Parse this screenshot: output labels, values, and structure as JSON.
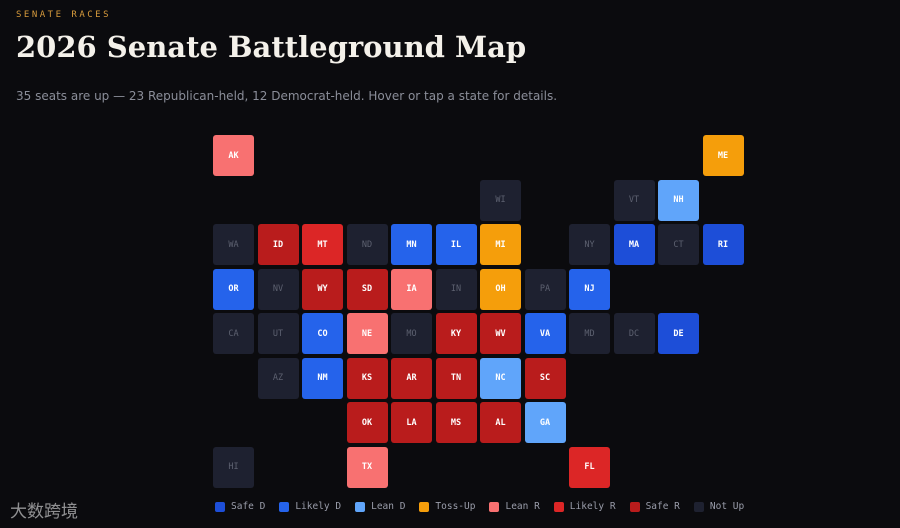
{
  "header": {
    "eyebrow": "SENATE RACES",
    "title": "2026 Senate Battleground Map",
    "subtitle": "35 seats are up — 23 Republican-held, 12 Democrat-held. Hover or tap a state for details."
  },
  "legend": [
    {
      "name": "Safe D",
      "color": "#1d4ed8"
    },
    {
      "name": "Likely D",
      "color": "#2563eb"
    },
    {
      "name": "Lean D",
      "color": "#60a5fa"
    },
    {
      "name": "Toss-Up",
      "color": "#f59e0b"
    },
    {
      "name": "Lean R",
      "color": "#f87171"
    },
    {
      "name": "Likely R",
      "color": "#dc2626"
    },
    {
      "name": "Safe R",
      "color": "#b91c1c"
    },
    {
      "name": "Not Up",
      "color": "#1e2130"
    }
  ],
  "tiles": [
    {
      "label": "AK",
      "rating": "Lean R"
    },
    {
      "label": "ME",
      "rating": "Toss-Up"
    },
    {
      "label": "WI",
      "rating": "Not Up"
    },
    {
      "label": "VT",
      "rating": "Not Up"
    },
    {
      "label": "NH",
      "rating": "Lean D"
    },
    {
      "label": "WA",
      "rating": "Not Up"
    },
    {
      "label": "ID",
      "rating": "Safe R"
    },
    {
      "label": "MT",
      "rating": "Likely R"
    },
    {
      "label": "ND",
      "rating": "Not Up"
    },
    {
      "label": "MN",
      "rating": "Likely D"
    },
    {
      "label": "IL",
      "rating": "Likely D"
    },
    {
      "label": "MI",
      "rating": "Toss-Up"
    },
    {
      "label": "NY",
      "rating": "Not Up"
    },
    {
      "label": "MA",
      "rating": "Safe D"
    },
    {
      "label": "CT",
      "rating": "Not Up"
    },
    {
      "label": "RI",
      "rating": "Safe D"
    },
    {
      "label": "OR",
      "rating": "Likely D"
    },
    {
      "label": "NV",
      "rating": "Not Up"
    },
    {
      "label": "WY",
      "rating": "Safe R"
    },
    {
      "label": "SD",
      "rating": "Safe R"
    },
    {
      "label": "IA",
      "rating": "Lean R"
    },
    {
      "label": "IN",
      "rating": "Not Up"
    },
    {
      "label": "OH",
      "rating": "Toss-Up"
    },
    {
      "label": "PA",
      "rating": "Not Up"
    },
    {
      "label": "NJ",
      "rating": "Likely D"
    },
    {
      "label": "CA",
      "rating": "Not Up"
    },
    {
      "label": "UT",
      "rating": "Not Up"
    },
    {
      "label": "CO",
      "rating": "Likely D"
    },
    {
      "label": "NE",
      "rating": "Lean R"
    },
    {
      "label": "MO",
      "rating": "Not Up"
    },
    {
      "label": "KY",
      "rating": "Safe R"
    },
    {
      "label": "WV",
      "rating": "Safe R"
    },
    {
      "label": "VA",
      "rating": "Likely D"
    },
    {
      "label": "MD",
      "rating": "Not Up"
    },
    {
      "label": "DC",
      "rating": "Not Up"
    },
    {
      "label": "DE",
      "rating": "Safe D"
    },
    {
      "label": "AZ",
      "rating": "Not Up"
    },
    {
      "label": "NM",
      "rating": "Likely D"
    },
    {
      "label": "KS",
      "rating": "Safe R"
    },
    {
      "label": "AR",
      "rating": "Safe R"
    },
    {
      "label": "TN",
      "rating": "Safe R"
    },
    {
      "label": "NC",
      "rating": "Lean D"
    },
    {
      "label": "SC",
      "rating": "Safe R"
    },
    {
      "label": "OK",
      "rating": "Safe R"
    },
    {
      "label": "LA",
      "rating": "Safe R"
    },
    {
      "label": "MS",
      "rating": "Safe R"
    },
    {
      "label": "AL",
      "rating": "Safe R"
    },
    {
      "label": "GA",
      "rating": "Lean D"
    },
    {
      "label": "HI",
      "rating": "Not Up"
    },
    {
      "label": "TX",
      "rating": "Lean R"
    },
    {
      "label": "FL",
      "rating": "Likely R"
    }
  ],
  "watermark": "大数跨境"
}
